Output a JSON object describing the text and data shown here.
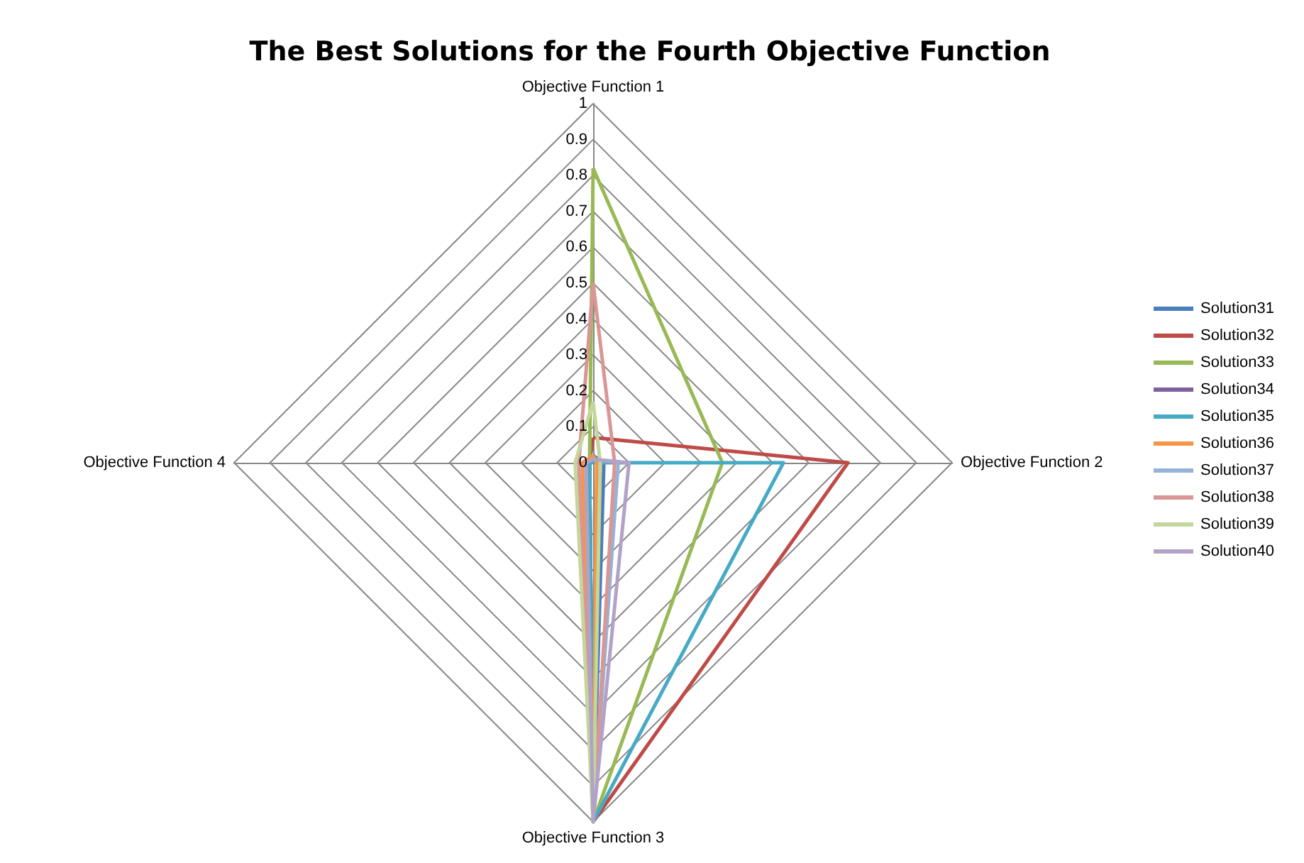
{
  "chart_data": {
    "type": "radar",
    "title": "The Best Solutions for the Fourth Objective Function",
    "categories": [
      "Objective Function 1",
      "Objective Function 2",
      "Objective Function 3",
      "Objective Function 4"
    ],
    "ylim": [
      0,
      1
    ],
    "yticks": [
      0,
      0.1,
      0.2,
      0.3,
      0.4,
      0.5,
      0.6,
      0.7,
      0.8,
      0.9,
      1
    ],
    "grid": true,
    "legend": "right",
    "marker": "none",
    "series": [
      {
        "name": "Solution31",
        "color": "#4a7ebb",
        "values": [
          0.02,
          0.03,
          1,
          0.01
        ]
      },
      {
        "name": "Solution32",
        "color": "#be4b48",
        "values": [
          0.07,
          0.71,
          1,
          0.01
        ]
      },
      {
        "name": "Solution33",
        "color": "#98b954",
        "values": [
          0.82,
          0.36,
          1,
          0.01
        ]
      },
      {
        "name": "Solution34",
        "color": "#7d60a0",
        "values": [
          0.01,
          0.02,
          1,
          0.01
        ]
      },
      {
        "name": "Solution35",
        "color": "#46aac5",
        "values": [
          0,
          0.53,
          1,
          0.01
        ]
      },
      {
        "name": "Solution36",
        "color": "#f69546",
        "values": [
          0.02,
          0.01,
          1,
          0.03
        ]
      },
      {
        "name": "Solution37",
        "color": "#95b3d7",
        "values": [
          0.01,
          0.07,
          1,
          0.02
        ]
      },
      {
        "name": "Solution38",
        "color": "#d99694",
        "values": [
          0.5,
          0.06,
          1,
          0.04
        ]
      },
      {
        "name": "Solution39",
        "color": "#c3d69b",
        "values": [
          0.17,
          0.02,
          1,
          0.05
        ]
      },
      {
        "name": "Solution40",
        "color": "#b3a2c7",
        "values": [
          0.01,
          0.1,
          1,
          0.02
        ]
      }
    ]
  }
}
